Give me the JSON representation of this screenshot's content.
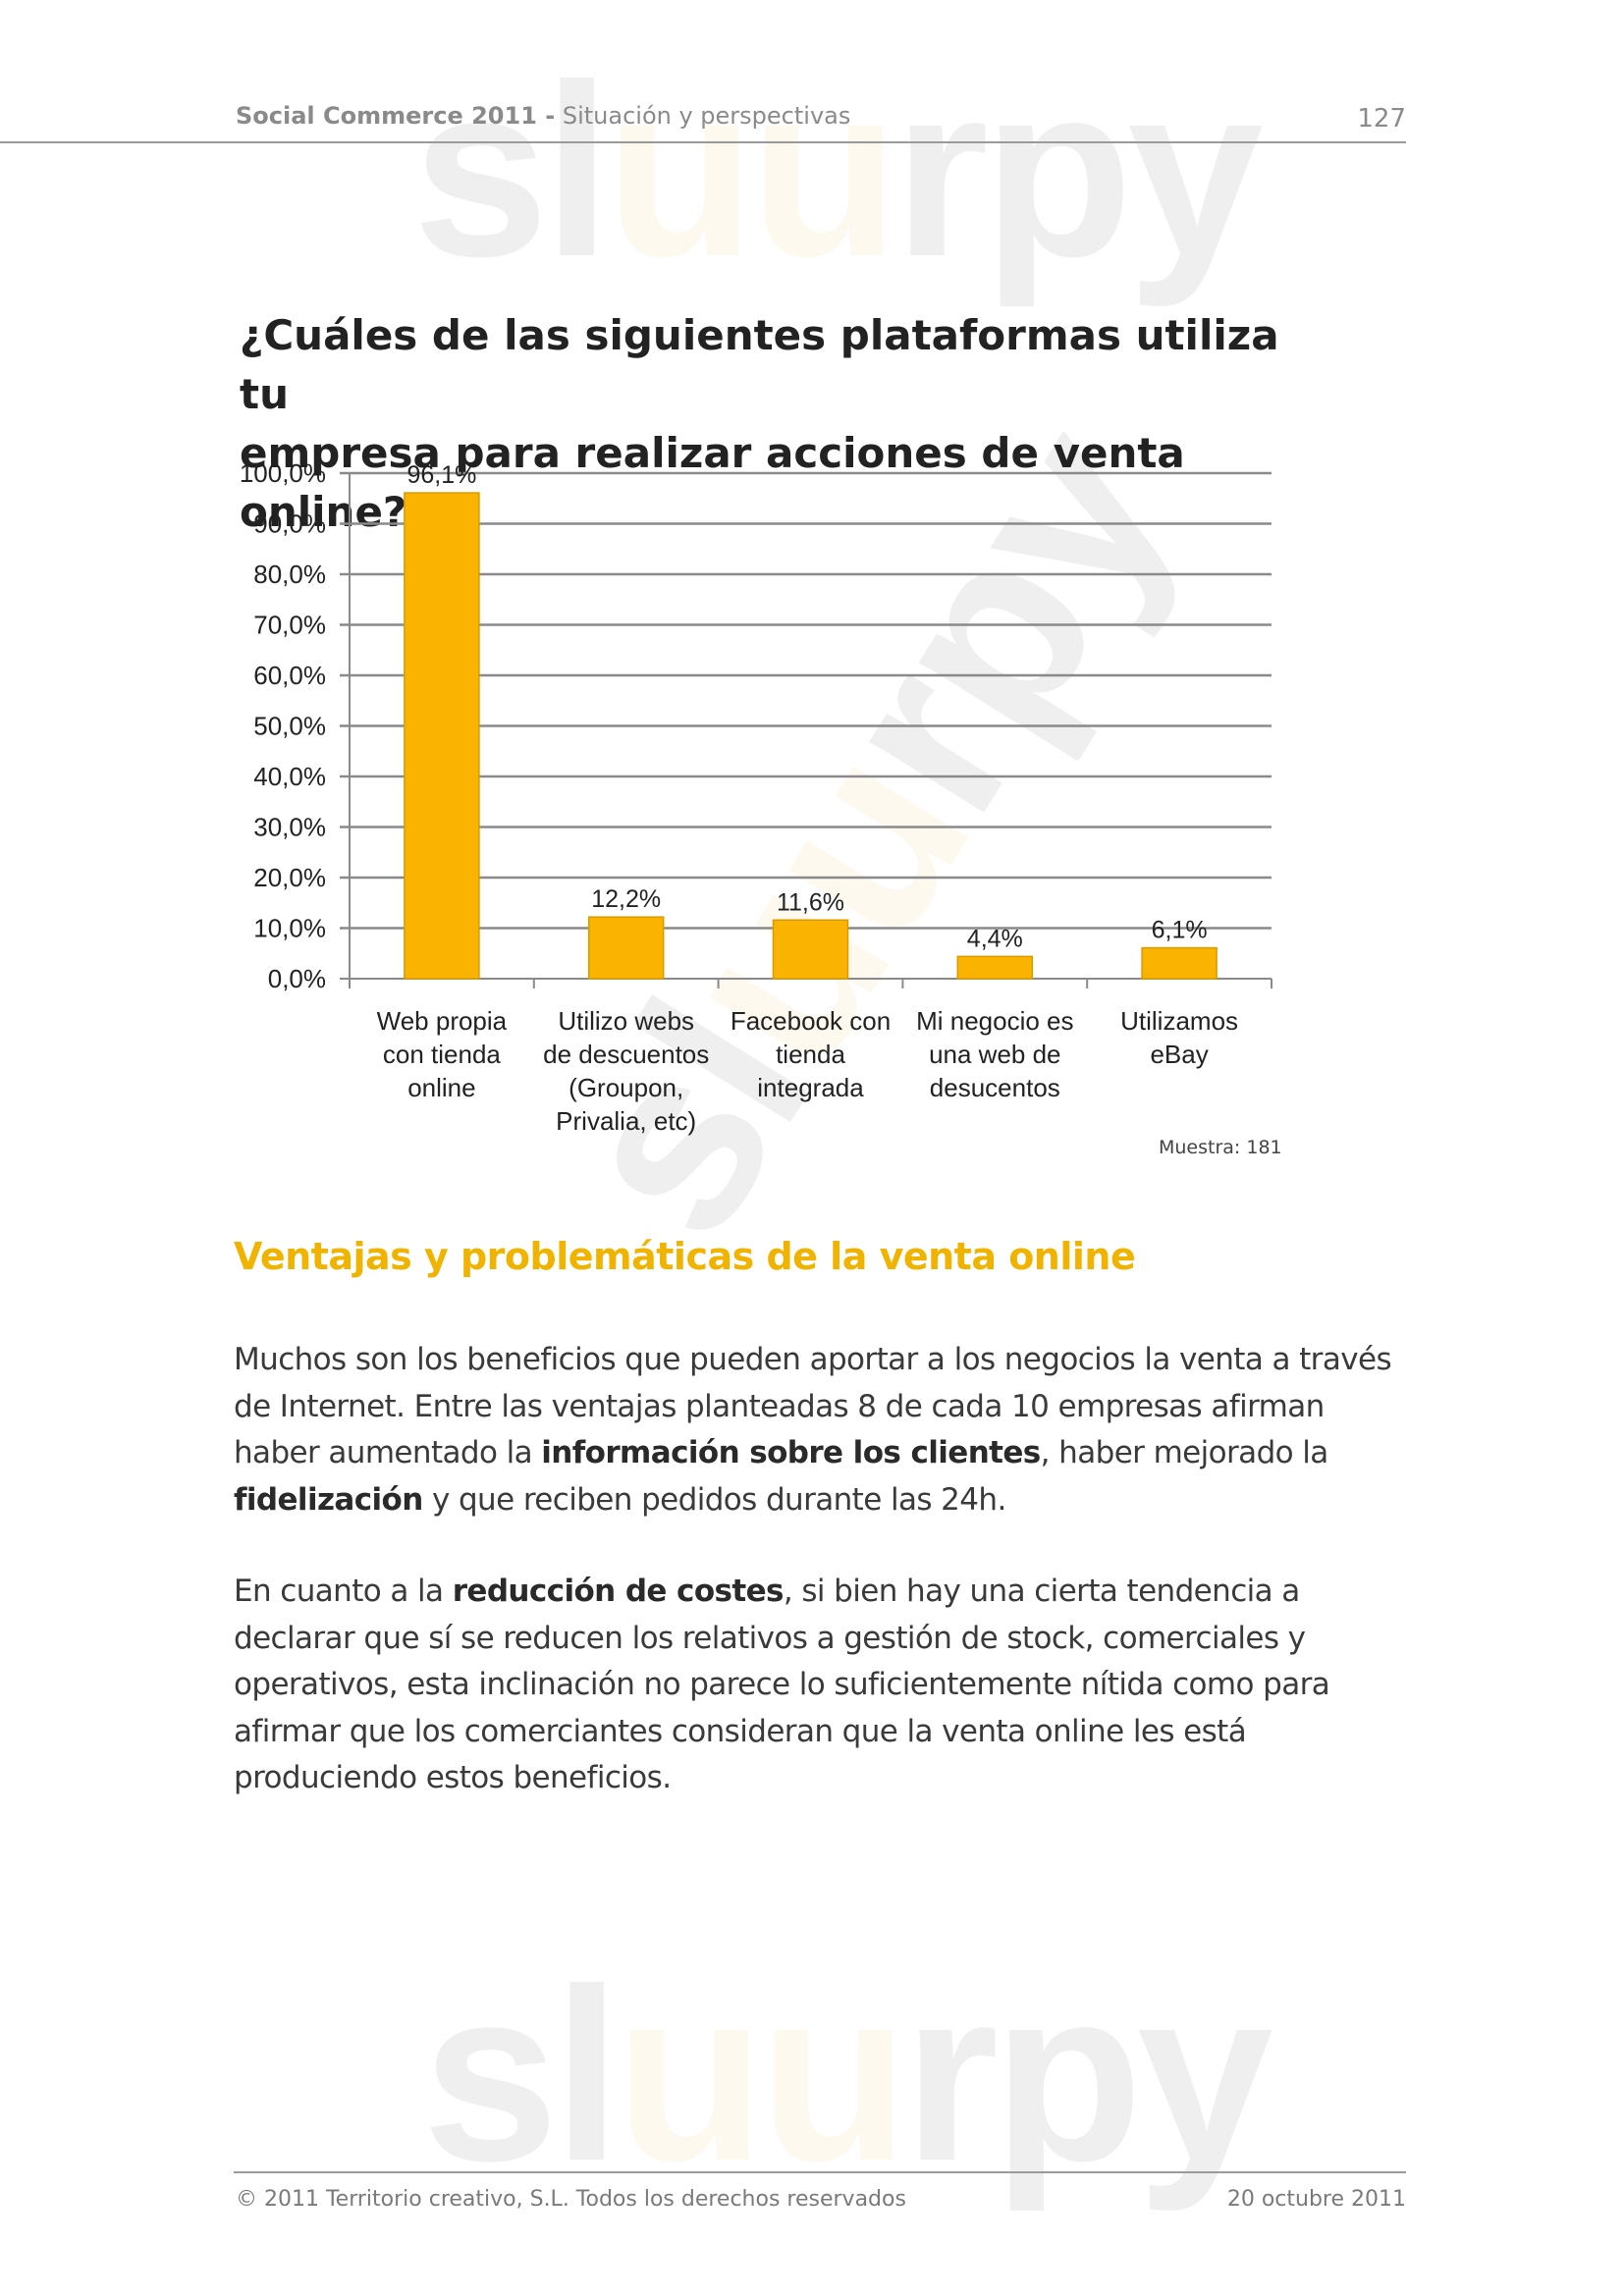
{
  "header": {
    "title_bold": "Social Commerce 2011 -",
    "title_rest": " Situación y perspectivas",
    "page_number": "127"
  },
  "chart_title_line1": "¿Cuáles de las siguientes plataformas utiliza tu",
  "chart_title_line2": "empresa para realizar acciones de venta online?",
  "chart_data": {
    "type": "bar",
    "title": "¿Cuáles de las siguientes plataformas utiliza tu empresa para realizar acciones de venta online?",
    "categories": [
      [
        "Web propia",
        "con tienda",
        "online"
      ],
      [
        "Utilizo webs",
        "de descuentos",
        "(Groupon,",
        "Privalia, etc)"
      ],
      [
        "Facebook con",
        "tienda",
        "integrada"
      ],
      [
        "Mi negocio es",
        "una web de",
        "desucentos"
      ],
      [
        "Utilizamos",
        "eBay"
      ]
    ],
    "values": [
      96.1,
      12.2,
      11.6,
      4.4,
      6.1
    ],
    "value_labels": [
      "96,1%",
      "12,2%",
      "11,6%",
      "4,4%",
      "6,1%"
    ],
    "y_ticks": [
      "0,0%",
      "10,0%",
      "20,0%",
      "30,0%",
      "40,0%",
      "50,0%",
      "60,0%",
      "70,0%",
      "80,0%",
      "90,0%",
      "100,0%"
    ],
    "ylim": [
      0,
      100
    ],
    "grid": true,
    "bar_color": "#fab400",
    "xlabel": "",
    "ylabel": ""
  },
  "sample_note": "Muestra: 181",
  "section_title": "Ventajas y problemáticas de la venta online",
  "paragraph1": {
    "t1": "Muchos son los beneficios que pueden aportar a los negocios la venta a través de Internet. Entre las ventajas planteadas 8 de cada 10 empresas afirman haber aumentado la ",
    "b1": "información sobre los clientes",
    "t2": ", haber mejorado la ",
    "b2": "fidelización",
    "t3": " y que reciben pedidos durante las 24h."
  },
  "paragraph2": {
    "t1": "En cuanto a la ",
    "b1": "reducción de costes",
    "t2": ", si bien hay una cierta tendencia a declarar que sí se reducen los relativos a gestión de stock, comerciales y operativos, esta inclinación no parece lo suficientemente nítida como para afirmar que los comerciantes consideran que la venta online les está produciendo estos beneficios."
  },
  "watermark": {
    "text_a": "sl",
    "text_b": "uu",
    "text_c": "rpy"
  },
  "footer": {
    "left": "© 2011 Territorio creativo, S.L. Todos los derechos reservados",
    "right": "20 octubre 2011"
  }
}
